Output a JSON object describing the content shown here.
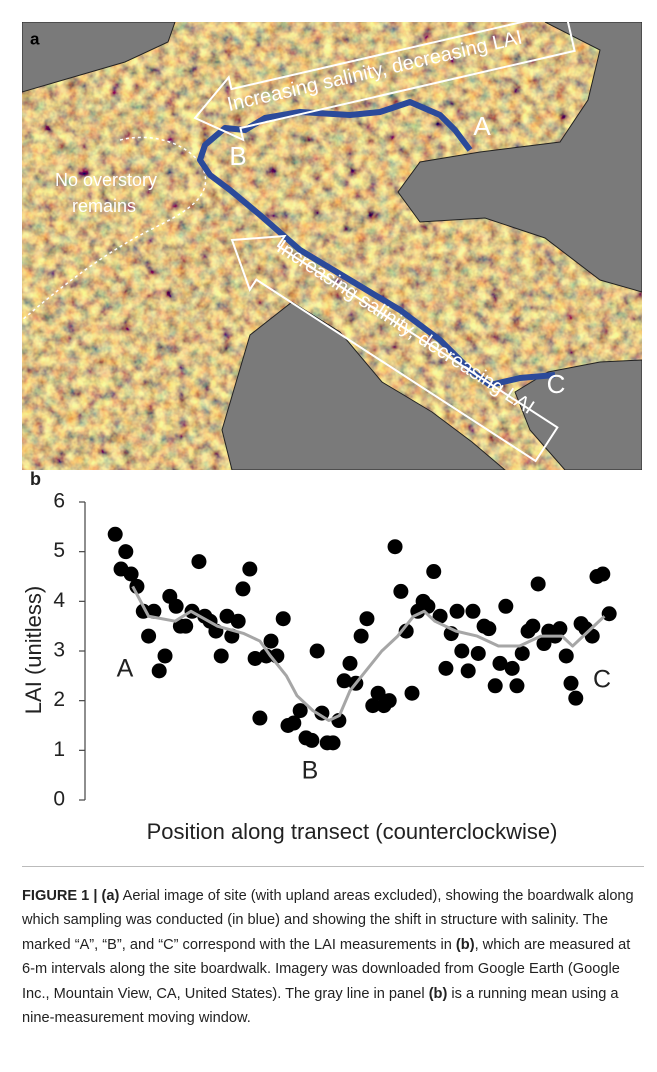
{
  "panel_a": {
    "label": "a",
    "arrow_top_text": "Increasing salinity, decreasing LAI",
    "arrow_bottom_text": "Increasing salinity, decreasing LAI",
    "point_a": "A",
    "point_b": "B",
    "point_c": "C",
    "no_overstory": [
      "No overstory",
      "remains"
    ]
  },
  "chart_data": {
    "type": "scatter",
    "label": "b",
    "ylabel": "LAI (unitless)",
    "xlabel": "Position along transect (counterclockwise)",
    "xlim": [
      0,
      100
    ],
    "ylim": [
      0,
      6
    ],
    "yticks": [
      0,
      1,
      2,
      3,
      4,
      5,
      6
    ],
    "annotations": [
      "A",
      "B",
      "C"
    ],
    "series": [
      {
        "type": "scatter",
        "color": "#000000",
        "x": [
          5.7,
          6.8,
          7.7,
          8.7,
          9.8,
          11,
          12,
          13,
          14,
          15.1,
          16,
          17.2,
          18,
          19,
          20.2,
          21.5,
          22.6,
          23.6,
          24.7,
          25.7,
          26.8,
          27.7,
          28.9,
          29.8,
          31.1,
          32.1,
          33,
          34.2,
          35.1,
          36.2,
          37.4,
          38.3,
          39.4,
          40.6,
          41.7,
          42.8,
          43.8,
          44.7,
          45.7,
          46.8,
          47.9,
          48.9,
          50,
          51.1,
          52.1,
          53.2,
          54.3,
          55.3,
          56.4,
          57.4,
          58.5,
          59.6,
          60.6,
          61.7,
          62.8,
          63.8,
          64.7,
          65.8,
          67,
          68.1,
          69.1,
          70.2,
          71.1,
          72.3,
          73.2,
          74.2,
          75.3,
          76.2,
          77.4,
          78.3,
          79.4,
          80.6,
          81.5,
          82.5,
          83.6,
          84.5,
          85.5,
          86.6,
          87.5,
          88.7,
          89.6,
          90.8,
          91.7,
          92.6,
          93.6,
          94.5,
          95.7,
          96.6,
          97.7,
          98.9
        ],
        "values": [
          5.35,
          4.65,
          5.0,
          4.55,
          4.3,
          3.8,
          3.3,
          3.8,
          2.6,
          2.9,
          4.1,
          3.9,
          3.5,
          3.5,
          3.8,
          4.8,
          3.7,
          3.6,
          3.4,
          2.9,
          3.7,
          3.3,
          3.6,
          4.25,
          4.65,
          2.85,
          1.65,
          2.9,
          3.2,
          2.9,
          3.65,
          1.5,
          1.55,
          1.8,
          1.25,
          1.2,
          3.0,
          1.75,
          1.15,
          1.15,
          1.6,
          2.4,
          2.75,
          2.35,
          3.3,
          3.65,
          1.9,
          2.15,
          1.9,
          2.0,
          5.1,
          4.2,
          3.4,
          2.15,
          3.8,
          4.0,
          3.9,
          4.6,
          3.7,
          2.65,
          3.35,
          3.8,
          3.0,
          2.6,
          3.8,
          2.95,
          3.5,
          3.45,
          2.3,
          2.75,
          3.9,
          2.65,
          2.3,
          2.95,
          3.4,
          3.5,
          4.35,
          3.15,
          3.4,
          3.3,
          3.45,
          2.9,
          2.35,
          2.05,
          3.55,
          3.45,
          3.3,
          4.5,
          4.55,
          3.75
        ]
      },
      {
        "type": "line",
        "color": "#a6a6a6",
        "x": [
          9,
          12,
          17,
          20,
          25,
          30,
          33,
          35,
          38,
          40,
          43,
          46,
          48,
          50,
          53,
          56,
          59,
          62,
          64,
          66,
          70,
          74,
          78,
          82,
          86,
          90,
          92,
          95,
          98
        ],
        "values": [
          4.3,
          3.7,
          3.6,
          3.8,
          3.5,
          3.35,
          3.2,
          2.9,
          2.5,
          2.1,
          1.8,
          1.6,
          1.7,
          2.2,
          2.6,
          3.0,
          3.3,
          3.7,
          3.8,
          3.6,
          3.4,
          3.3,
          3.1,
          3.1,
          3.3,
          3.3,
          3.1,
          3.4,
          3.7
        ]
      }
    ]
  },
  "caption": [
    {
      "text": "FIGURE 1 | (a)",
      "bold": true
    },
    {
      "text": " Aerial image of site (with upland areas excluded), showing the boardwalk along which sampling was conducted (in blue) and showing the shift in structure with salinity. The marked “A”, “B”, and “C” correspond with the LAI measurements in ",
      "bold": false
    },
    {
      "text": "(b)",
      "bold": true
    },
    {
      "text": ", which are measured at 6-m intervals along the site boardwalk. Imagery was downloaded from Google Earth (Google Inc., Mountain View, CA, United States). The gray line in panel ",
      "bold": false
    },
    {
      "text": "(b)",
      "bold": true
    },
    {
      "text": " is a running mean using a nine-measurement moving window.",
      "bold": false
    }
  ]
}
